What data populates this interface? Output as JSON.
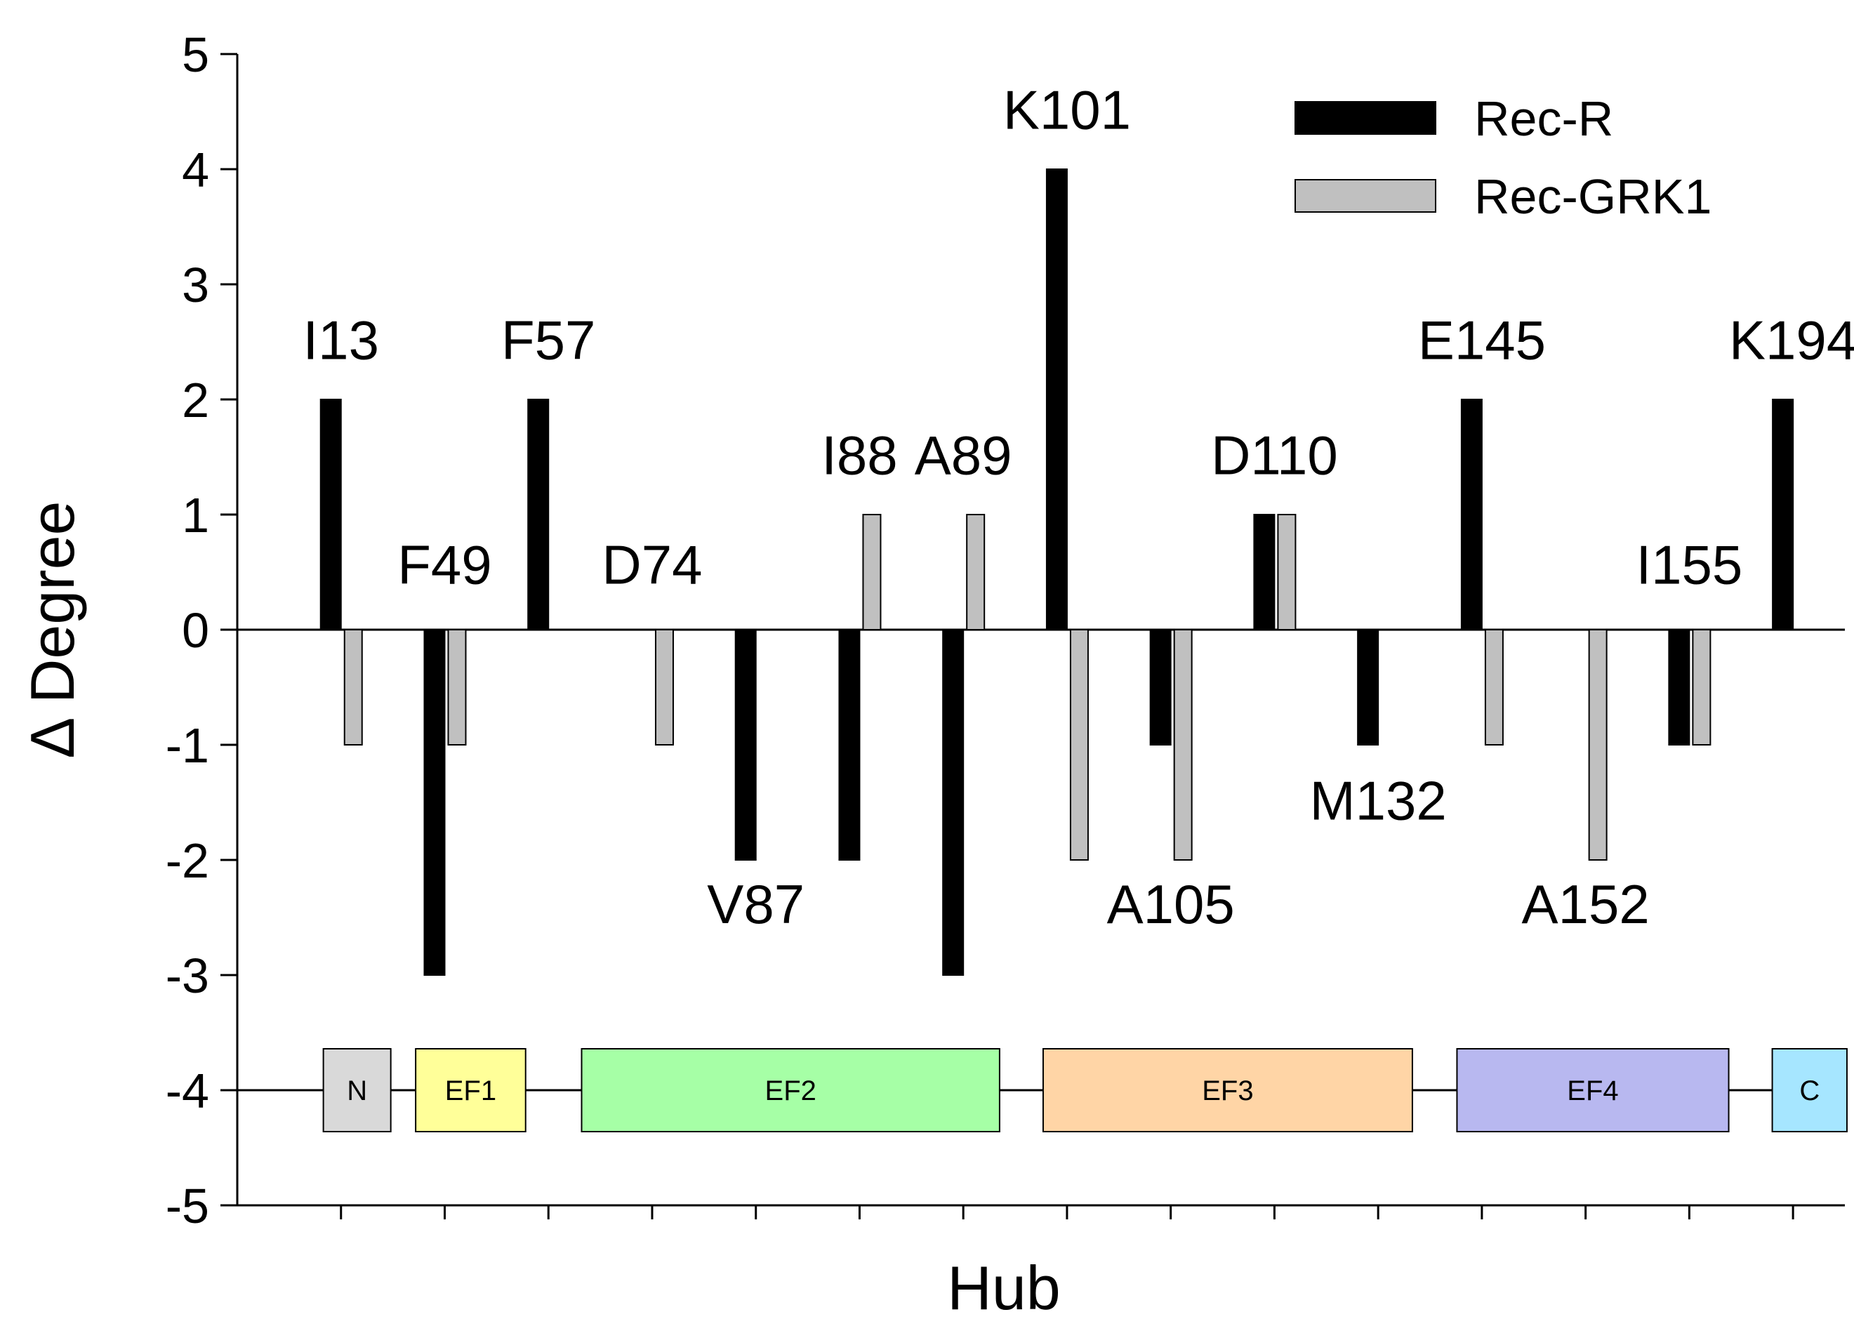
{
  "chart_data": {
    "type": "bar",
    "title": "",
    "xlabel": "Hub",
    "ylabel": "Δ Degree",
    "ylim": [
      -5,
      5
    ],
    "yticks": [
      -5,
      -4,
      -3,
      -2,
      -1,
      0,
      1,
      2,
      3,
      4,
      5
    ],
    "legend_position": "top-right",
    "series": [
      {
        "name": "Rec-R",
        "color": "#000000"
      },
      {
        "name": "Rec-GRK1",
        "color": "#c0c0c0"
      }
    ],
    "hubs": [
      {
        "label": "I13",
        "rec_r": 2,
        "rec_grk1": -1,
        "label_at": 2.35
      },
      {
        "label": "F49",
        "rec_r": -3,
        "rec_grk1": -1,
        "label_at": 0.4
      },
      {
        "label": "F57",
        "rec_r": 2,
        "rec_grk1": 0,
        "label_at": 2.35
      },
      {
        "label": "D74",
        "rec_r": 0,
        "rec_grk1": -1,
        "label_at": 0.4
      },
      {
        "label": "V87",
        "rec_r": -2,
        "rec_grk1": 0,
        "label_at": -2.55
      },
      {
        "label": "I88",
        "rec_r": -2,
        "rec_grk1": 1,
        "label_at": 1.35
      },
      {
        "label": "A89",
        "rec_r": -3,
        "rec_grk1": 1,
        "label_at": 1.35
      },
      {
        "label": "K101",
        "rec_r": 4,
        "rec_grk1": -2,
        "label_at": 4.35
      },
      {
        "label": "A105",
        "rec_r": -1,
        "rec_grk1": -2,
        "label_at": -2.55
      },
      {
        "label": "D110",
        "rec_r": 1,
        "rec_grk1": 1,
        "label_at": 1.35
      },
      {
        "label": "M132",
        "rec_r": -1,
        "rec_grk1": 0,
        "label_at": -1.65
      },
      {
        "label": "E145",
        "rec_r": 2,
        "rec_grk1": -1,
        "label_at": 2.35
      },
      {
        "label": "A152",
        "rec_r": 0,
        "rec_grk1": -2,
        "label_at": -2.55
      },
      {
        "label": "I155",
        "rec_r": -1,
        "rec_grk1": -1,
        "label_at": 0.4
      },
      {
        "label": "K194",
        "rec_r": 2,
        "rec_grk1": 0,
        "label_at": 2.35
      }
    ],
    "domains": [
      {
        "label": "N",
        "color": "#d9d9d9",
        "start": 0.83,
        "end": 1.48
      },
      {
        "label": "EF1",
        "color": "#ffff99",
        "start": 1.72,
        "end": 2.78
      },
      {
        "label": "EF2",
        "color": "#a6ffa6",
        "start": 3.32,
        "end": 7.35
      },
      {
        "label": "EF3",
        "color": "#ffd5a6",
        "start": 7.77,
        "end": 11.33
      },
      {
        "label": "EF4",
        "color": "#b8b8f0",
        "start": 11.76,
        "end": 14.38
      },
      {
        "label": "C",
        "color": "#a6e6ff",
        "start": 14.8,
        "end": 15.52
      }
    ],
    "domain_track_y": -4,
    "category_count": 15
  }
}
